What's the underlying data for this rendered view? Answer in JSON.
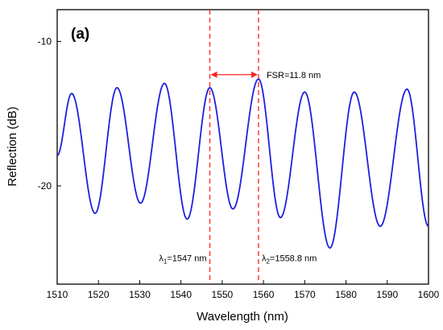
{
  "chart_data": {
    "type": "line",
    "panel_label": "(a)",
    "xlabel": "Wavelength (nm)",
    "ylabel": "Reflection (dB)",
    "xlim": [
      1510,
      1600
    ],
    "ylim": [
      -26.8,
      -7.8
    ],
    "x_ticks": [
      1510,
      1520,
      1530,
      1540,
      1550,
      1560,
      1570,
      1580,
      1590,
      1600
    ],
    "y_ticks": [
      -10,
      -20
    ],
    "grid": false,
    "line_color": "#1f1fe0",
    "series": [
      {
        "x": [
          1510,
          1513.5,
          1519.2,
          1524.5,
          1530.2,
          1536.0,
          1541.5,
          1547.0,
          1552.6,
          1558.8,
          1564.1,
          1570.0,
          1576.1,
          1582.0,
          1588.3,
          1594.8,
          1600
        ],
        "y": [
          -17.9,
          -13.6,
          -21.9,
          -13.2,
          -21.2,
          -12.9,
          -22.3,
          -13.2,
          -21.6,
          -12.6,
          -22.2,
          -13.5,
          -24.3,
          -13.5,
          -22.8,
          -13.3,
          -22.8
        ]
      }
    ],
    "annotations": {
      "fsr": {
        "text": "FSR=11.8 nm",
        "x_start": 1547.0,
        "x_end": 1558.8,
        "y": -12.3
      },
      "markers": [
        {
          "x": 1547.0,
          "label_prefix": "λ",
          "label_sub": "1",
          "label_suffix": "=1547 nm",
          "label_y": -25.2
        },
        {
          "x": 1558.8,
          "label_prefix": "λ",
          "label_sub": "2",
          "label_suffix": "=1558.8 nm",
          "label_y": -25.2
        }
      ],
      "marker_color": "#ff2020"
    }
  }
}
